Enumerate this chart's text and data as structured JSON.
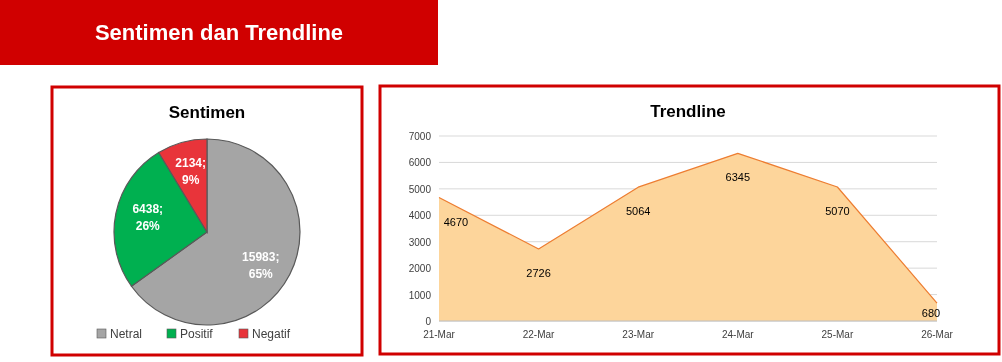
{
  "chart_data": [
    {
      "type": "other",
      "title": "Sentimen dan Trendline"
    },
    {
      "type": "pie",
      "title": "Sentimen",
      "categories": [
        "Netral",
        "Positif",
        "Negatif"
      ],
      "values": [
        15983,
        6438,
        2134
      ],
      "colors": [
        "#a5a5a5",
        "#00b050",
        "#e8343a"
      ],
      "value_labels": [
        "15983; 65%",
        "6438; 26%",
        "2134; 9%"
      ],
      "legend": "bottom"
    },
    {
      "type": "area",
      "title": "Trendline",
      "categories": [
        "21-Mar",
        "22-Mar",
        "23-Mar",
        "24-Mar",
        "25-Mar",
        "26-Mar"
      ],
      "series": [
        {
          "color": "#ed7d31",
          "values": [
            4670,
            2726,
            5064,
            6345,
            5070,
            680
          ]
        }
      ],
      "ylim": [
        0,
        7000
      ],
      "yticks": [
        0,
        1000,
        2000,
        3000,
        4000,
        5000,
        6000,
        7000
      ],
      "grid": "y",
      "data_labels": true
    }
  ]
}
